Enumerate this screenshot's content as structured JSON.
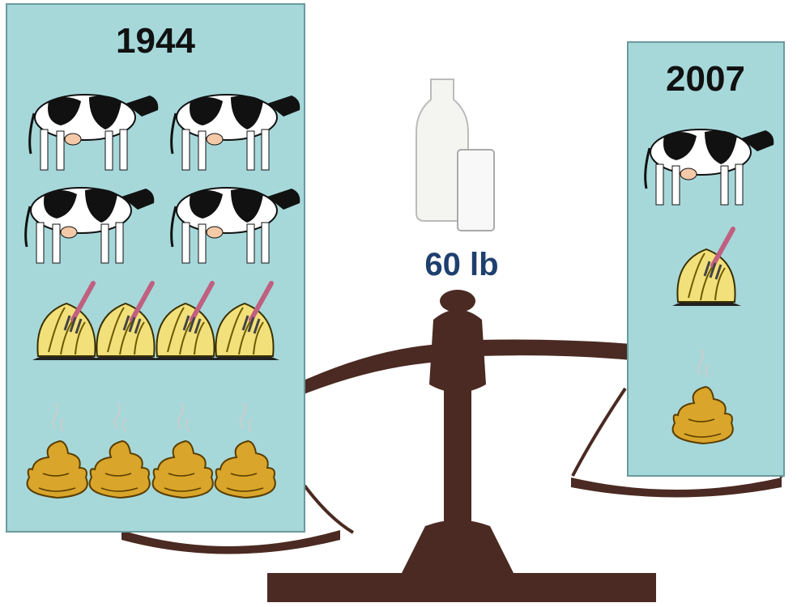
{
  "panels": [
    {
      "year": "1944"
    },
    {
      "year": "2007"
    }
  ],
  "milk": {
    "label": "60 lb"
  }
}
